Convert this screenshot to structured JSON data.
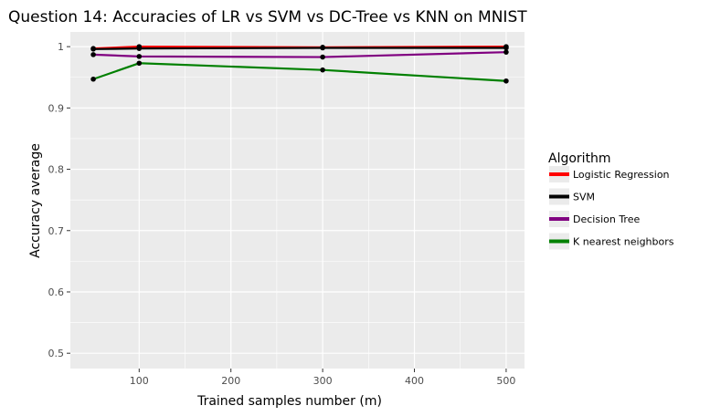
{
  "chart_data": {
    "type": "line",
    "title": "Question 14: Accuracies of LR vs SVM vs DC-Tree vs KNN on MNIST",
    "xlabel": "Trained samples number (m)",
    "ylabel": "Accuracy average",
    "x": [
      50,
      100,
      300,
      500
    ],
    "xlim": [
      25,
      520
    ],
    "ylim": [
      0.475,
      1.024
    ],
    "xticks": [
      100,
      200,
      300,
      400,
      500
    ],
    "yticks": [
      0.5,
      0.6,
      0.7,
      0.8,
      0.9,
      1
    ],
    "yticklabels": [
      "0.5",
      "0.6",
      "0.7",
      "0.8",
      "0.9",
      "1"
    ],
    "grid": true,
    "legend_title": "Algorithm",
    "legend_position": "right",
    "point_color": "#000000",
    "panel_bg": "#ebebeb",
    "series": [
      {
        "name": "Logistic Regression",
        "color": "#ff0000",
        "values": [
          0.997,
          1.0,
          0.999,
          1.0
        ]
      },
      {
        "name": "SVM",
        "color": "#000000",
        "values": [
          0.996,
          0.997,
          0.998,
          0.998
        ]
      },
      {
        "name": "Decision Tree",
        "color": "#800080",
        "values": [
          0.987,
          0.984,
          0.983,
          0.991
        ]
      },
      {
        "name": "K nearest neighbors",
        "color": "#008000",
        "values": [
          0.947,
          0.973,
          0.962,
          0.944
        ]
      }
    ]
  }
}
